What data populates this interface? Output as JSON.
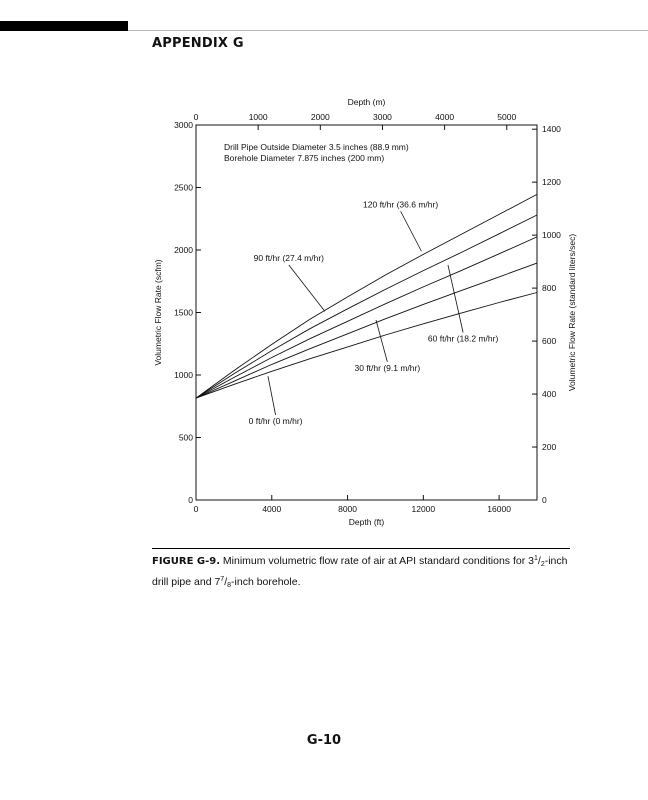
{
  "header": {
    "title": "APPENDIX G"
  },
  "figure": {
    "label": "FIGURE G-9.",
    "caption_before": " Minimum volumetric flow rate of air at API standard conditions for 3",
    "frac1_num": "1",
    "frac1_den": "2",
    "caption_middle": "-inch drill pipe and 7",
    "frac2_num": "7",
    "frac2_den": "8",
    "caption_after": "-inch borehole."
  },
  "page_number": "G-10",
  "chart_data": {
    "type": "line",
    "title": "",
    "xlabel": "Depth (ft)",
    "ylabel": "Volumetric Flow Rate (scfm)",
    "x2label": "Depth (m)",
    "y2label": "Volumetric Flow Rate (standard liters/sec)",
    "xlim": [
      0,
      18000
    ],
    "ylim": [
      0,
      3000
    ],
    "x2lim": [
      0,
      5486.4
    ],
    "y2lim": [
      0,
      1415.8
    ],
    "x_ticks": [
      0,
      4000,
      8000,
      12000,
      16000
    ],
    "y_ticks": [
      0,
      500,
      1000,
      1500,
      2000,
      2500,
      3000
    ],
    "x2_ticks": [
      0,
      1000,
      2000,
      3000,
      4000,
      5000
    ],
    "y2_ticks": [
      0,
      200,
      400,
      600,
      800,
      1000,
      1200,
      1400
    ],
    "grid": false,
    "notes": [
      "Drill Pipe Outside Diameter 3.5 inches (88.9 mm)",
      "Borehole Diameter 7.875 inches (200 mm)"
    ],
    "series": [
      {
        "name": "0 ft/hr (0 m/hr)",
        "x": [
          0,
          2000,
          4000,
          6000,
          8000,
          10000,
          12000,
          14000,
          16000,
          18000
        ],
        "values": [
          815,
          925,
          1030,
          1130,
          1225,
          1320,
          1410,
          1495,
          1580,
          1660
        ]
      },
      {
        "name": "30 ft/hr (9.1 m/hr)",
        "x": [
          0,
          2000,
          4000,
          6000,
          8000,
          10000,
          12000,
          14000,
          16000,
          18000
        ],
        "values": [
          815,
          950,
          1085,
          1210,
          1330,
          1450,
          1565,
          1675,
          1785,
          1895
        ]
      },
      {
        "name": "60 ft/hr (18.2 m/hr)",
        "x": [
          0,
          2000,
          4000,
          6000,
          8000,
          10000,
          12000,
          14000,
          16000,
          18000
        ],
        "values": [
          815,
          980,
          1140,
          1290,
          1430,
          1570,
          1705,
          1835,
          1970,
          2105
        ]
      },
      {
        "name": "90 ft/hr (27.4 m/hr)",
        "x": [
          0,
          2000,
          4000,
          6000,
          8000,
          10000,
          12000,
          14000,
          16000,
          18000
        ],
        "values": [
          815,
          1010,
          1195,
          1370,
          1530,
          1685,
          1835,
          1980,
          2130,
          2280
        ]
      },
      {
        "name": "120 ft/hr (36.6 m/hr)",
        "x": [
          0,
          2000,
          4000,
          6000,
          8000,
          10000,
          12000,
          14000,
          16000,
          18000
        ],
        "values": [
          815,
          1035,
          1245,
          1445,
          1625,
          1800,
          1965,
          2125,
          2285,
          2445
        ]
      }
    ],
    "annotations": [
      {
        "series": 4,
        "text": "120 ft/hr (36.6 m/hr)",
        "at": [
          11900,
          1990
        ],
        "label": [
          10800,
          2310
        ]
      },
      {
        "series": 3,
        "text": "90 ft/hr (27.4 m/hr)",
        "at": [
          6800,
          1510
        ],
        "label": [
          4900,
          1880
        ]
      },
      {
        "series": 2,
        "text": "60 ft/hr (18.2 m/hr)",
        "at": [
          13300,
          1880
        ],
        "label": [
          14100,
          1340
        ]
      },
      {
        "series": 1,
        "text": "30 ft/hr (9.1 m/hr)",
        "at": [
          9500,
          1440
        ],
        "label": [
          10100,
          1105
        ]
      },
      {
        "series": 0,
        "text": "0 ft/hr (0 m/hr)",
        "at": [
          3800,
          990
        ],
        "label": [
          4200,
          680
        ]
      }
    ]
  }
}
